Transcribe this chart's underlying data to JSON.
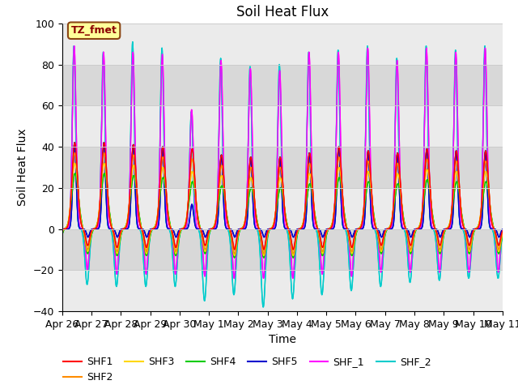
{
  "title": "Soil Heat Flux",
  "xlabel": "Time",
  "ylabel": "Soil Heat Flux",
  "ylim": [
    -40,
    100
  ],
  "annotation": "TZ_fmet",
  "annotation_color": "#8B0000",
  "annotation_bg": "#FFFF99",
  "annotation_border": "#8B4513",
  "xtick_labels": [
    "Apr 26",
    "Apr 27",
    "Apr 28",
    "Apr 29",
    "Apr 30",
    "May 1",
    "May 2",
    "May 3",
    "May 4",
    "May 5",
    "May 6",
    "May 7",
    "May 8",
    "May 9",
    "May 10",
    "May 11"
  ],
  "series_colors": {
    "SHF1": "#FF0000",
    "SHF2": "#FF8C00",
    "SHF3": "#FFD700",
    "SHF4": "#00CC00",
    "SHF5": "#0000CD",
    "SHF_1": "#FF00FF",
    "SHF_2": "#00CCCC"
  },
  "series_order": [
    "SHF1",
    "SHF2",
    "SHF3",
    "SHF4",
    "SHF5",
    "SHF_1",
    "SHF_2"
  ],
  "grid_color": "#CCCCCC",
  "bg_color_light": "#EBEBEB",
  "bg_color_dark": "#D8D8D8",
  "plot_bg": "#FFFFFF",
  "yticks": [
    -40,
    -20,
    0,
    20,
    40,
    60,
    80,
    100
  ]
}
